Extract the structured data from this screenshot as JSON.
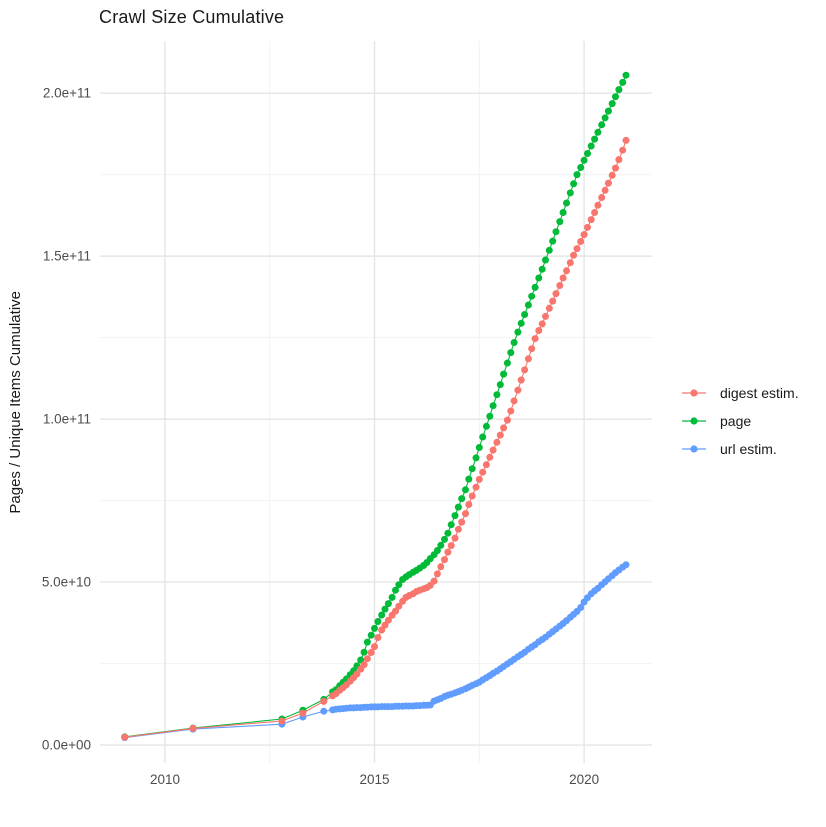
{
  "chart_data": {
    "type": "line",
    "title": "Crawl Size Cumulative",
    "ylabel": "Pages / Unique Items Cumulative",
    "xlabel": "",
    "value_unit": "1e9 (billions); y tick labels shown in scientific notation",
    "grid": "major and minor, light gray on white",
    "legend_position": "right",
    "x_domain": [
      2008.45,
      2021.62
    ],
    "y_domain": [
      -5.5,
      216
    ],
    "x_ticks": [
      {
        "value": 2010,
        "label": "2010"
      },
      {
        "value": 2015,
        "label": "2015"
      },
      {
        "value": 2020,
        "label": "2020"
      }
    ],
    "x_minor_gridlines": [
      2012.5,
      2017.5
    ],
    "y_ticks": [
      {
        "value": 0,
        "label": "0.0e+00"
      },
      {
        "value": 50,
        "label": "5.0e+10"
      },
      {
        "value": 100,
        "label": "1.0e+11"
      },
      {
        "value": 150,
        "label": "1.5e+11"
      },
      {
        "value": 200,
        "label": "2.0e+11"
      }
    ],
    "y_minor_gridlines": [
      25,
      75,
      125,
      175
    ],
    "axis_text_color": "#4d4d4d",
    "series": [
      {
        "name": "digest estim.",
        "color": "#F8766D",
        "points": [
          [
            2009.04,
            2.4
          ],
          [
            2010.67,
            5.1
          ],
          [
            2012.79,
            7.4
          ],
          [
            2013.29,
            9.8
          ],
          [
            2013.79,
            13.4
          ],
          [
            2014.0,
            15.1
          ],
          [
            2014.08,
            15.8
          ],
          [
            2014.17,
            16.8
          ],
          [
            2014.25,
            17.6
          ],
          [
            2014.33,
            18.5
          ],
          [
            2014.42,
            19.6
          ],
          [
            2014.5,
            20.7
          ],
          [
            2014.58,
            21.8
          ],
          [
            2014.67,
            23.3
          ],
          [
            2014.75,
            24.7
          ],
          [
            2014.83,
            26.5
          ],
          [
            2014.92,
            28.4
          ],
          [
            2015.0,
            30.2
          ],
          [
            2015.08,
            33.0
          ],
          [
            2015.17,
            35.3
          ],
          [
            2015.25,
            36.8
          ],
          [
            2015.33,
            38.3
          ],
          [
            2015.42,
            39.8
          ],
          [
            2015.5,
            41.1
          ],
          [
            2015.58,
            42.6
          ],
          [
            2015.67,
            44.1
          ],
          [
            2015.75,
            45.3
          ],
          [
            2015.83,
            45.9
          ],
          [
            2015.92,
            46.4
          ],
          [
            2016.0,
            47.1
          ],
          [
            2016.08,
            47.5
          ],
          [
            2016.17,
            47.9
          ],
          [
            2016.25,
            48.3
          ],
          [
            2016.33,
            49.0
          ],
          [
            2016.42,
            50.3
          ],
          [
            2016.5,
            52.5
          ],
          [
            2016.58,
            54.7
          ],
          [
            2016.67,
            56.9
          ],
          [
            2016.75,
            59.2
          ],
          [
            2016.83,
            61.2
          ],
          [
            2016.92,
            63.5
          ],
          [
            2017.0,
            66.2
          ],
          [
            2017.08,
            68.4
          ],
          [
            2017.17,
            71.0
          ],
          [
            2017.25,
            73.8
          ],
          [
            2017.33,
            76.4
          ],
          [
            2017.42,
            79.1
          ],
          [
            2017.5,
            81.5
          ],
          [
            2017.58,
            83.7
          ],
          [
            2017.67,
            86.0
          ],
          [
            2017.75,
            88.3
          ],
          [
            2017.83,
            90.5
          ],
          [
            2017.92,
            92.9
          ],
          [
            2018.0,
            95.1
          ],
          [
            2018.08,
            97.3
          ],
          [
            2018.17,
            99.7
          ],
          [
            2018.25,
            102.5
          ],
          [
            2018.33,
            105.6
          ],
          [
            2018.42,
            108.9
          ],
          [
            2018.5,
            112.0
          ],
          [
            2018.58,
            115.1
          ],
          [
            2018.67,
            118.5
          ],
          [
            2018.75,
            121.6
          ],
          [
            2018.83,
            124.7
          ],
          [
            2018.92,
            127.2
          ],
          [
            2019.0,
            129.2
          ],
          [
            2019.08,
            131.5
          ],
          [
            2019.17,
            134.0
          ],
          [
            2019.25,
            136.2
          ],
          [
            2019.33,
            138.5
          ],
          [
            2019.42,
            141.0
          ],
          [
            2019.5,
            143.3
          ],
          [
            2019.58,
            145.5
          ],
          [
            2019.67,
            148.0
          ],
          [
            2019.75,
            150.3
          ],
          [
            2019.83,
            152.3
          ],
          [
            2019.92,
            154.5
          ],
          [
            2020.0,
            156.6
          ],
          [
            2020.08,
            158.8
          ],
          [
            2020.17,
            161.2
          ],
          [
            2020.25,
            163.4
          ],
          [
            2020.33,
            165.6
          ],
          [
            2020.42,
            168.0
          ],
          [
            2020.5,
            170.2
          ],
          [
            2020.58,
            172.4
          ],
          [
            2020.67,
            174.8
          ],
          [
            2020.75,
            177.0
          ],
          [
            2020.83,
            179.6
          ],
          [
            2020.92,
            182.5
          ],
          [
            2021.0,
            185.5
          ]
        ]
      },
      {
        "name": "page",
        "color": "#00BA38",
        "points": [
          [
            2009.04,
            2.5
          ],
          [
            2010.67,
            5.2
          ],
          [
            2012.79,
            8.0
          ],
          [
            2013.29,
            10.7
          ],
          [
            2013.79,
            14.0
          ],
          [
            2014.0,
            16.3
          ],
          [
            2014.08,
            17.0
          ],
          [
            2014.17,
            18.2
          ],
          [
            2014.25,
            19.3
          ],
          [
            2014.33,
            20.3
          ],
          [
            2014.42,
            21.6
          ],
          [
            2014.5,
            22.8
          ],
          [
            2014.58,
            24.3
          ],
          [
            2014.67,
            26.1
          ],
          [
            2014.75,
            28.5
          ],
          [
            2014.83,
            31.6
          ],
          [
            2014.92,
            33.7
          ],
          [
            2015.0,
            35.8
          ],
          [
            2015.08,
            37.9
          ],
          [
            2015.17,
            39.9
          ],
          [
            2015.25,
            41.7
          ],
          [
            2015.33,
            43.4
          ],
          [
            2015.42,
            45.3
          ],
          [
            2015.5,
            47.5
          ],
          [
            2015.58,
            49.2
          ],
          [
            2015.67,
            50.8
          ],
          [
            2015.75,
            51.6
          ],
          [
            2015.83,
            52.3
          ],
          [
            2015.92,
            53.0
          ],
          [
            2016.0,
            53.6
          ],
          [
            2016.08,
            54.3
          ],
          [
            2016.17,
            55.1
          ],
          [
            2016.25,
            56.0
          ],
          [
            2016.33,
            57.2
          ],
          [
            2016.42,
            58.4
          ],
          [
            2016.5,
            59.7
          ],
          [
            2016.58,
            61.3
          ],
          [
            2016.67,
            63.1
          ],
          [
            2016.75,
            65.0
          ],
          [
            2016.83,
            67.6
          ],
          [
            2016.92,
            70.4
          ],
          [
            2017.0,
            73.0
          ],
          [
            2017.08,
            75.6
          ],
          [
            2017.17,
            78.3
          ],
          [
            2017.25,
            81.6
          ],
          [
            2017.33,
            84.8
          ],
          [
            2017.42,
            88.1
          ],
          [
            2017.5,
            91.3
          ],
          [
            2017.58,
            94.5
          ],
          [
            2017.67,
            97.8
          ],
          [
            2017.75,
            100.9
          ],
          [
            2017.83,
            104.1
          ],
          [
            2017.92,
            107.5
          ],
          [
            2018.0,
            110.6
          ],
          [
            2018.08,
            113.8
          ],
          [
            2018.17,
            117.2
          ],
          [
            2018.25,
            120.4
          ],
          [
            2018.33,
            123.5
          ],
          [
            2018.42,
            126.7
          ],
          [
            2018.5,
            129.4
          ],
          [
            2018.58,
            132.1
          ],
          [
            2018.67,
            135.0
          ],
          [
            2018.75,
            137.7
          ],
          [
            2018.83,
            140.4
          ],
          [
            2018.92,
            143.3
          ],
          [
            2019.0,
            146.0
          ],
          [
            2019.08,
            148.8
          ],
          [
            2019.17,
            151.8
          ],
          [
            2019.25,
            154.6
          ],
          [
            2019.33,
            157.5
          ],
          [
            2019.42,
            160.6
          ],
          [
            2019.5,
            163.4
          ],
          [
            2019.58,
            166.3
          ],
          [
            2019.67,
            169.4
          ],
          [
            2019.75,
            172.2
          ],
          [
            2019.83,
            175.0
          ],
          [
            2019.92,
            177.2
          ],
          [
            2020.0,
            179.4
          ],
          [
            2020.08,
            181.5
          ],
          [
            2020.17,
            183.8
          ],
          [
            2020.25,
            185.9
          ],
          [
            2020.33,
            188.0
          ],
          [
            2020.42,
            190.3
          ],
          [
            2020.5,
            192.4
          ],
          [
            2020.58,
            194.5
          ],
          [
            2020.67,
            196.8
          ],
          [
            2020.75,
            198.9
          ],
          [
            2020.83,
            201.1
          ],
          [
            2020.92,
            203.3
          ],
          [
            2021.0,
            205.5
          ]
        ]
      },
      {
        "name": "url estim.",
        "color": "#619CFF",
        "points": [
          [
            2009.04,
            2.3
          ],
          [
            2010.67,
            4.9
          ],
          [
            2012.79,
            6.4
          ],
          [
            2013.29,
            8.6
          ],
          [
            2013.79,
            10.4
          ],
          [
            2014.0,
            10.8
          ],
          [
            2014.08,
            11.0
          ],
          [
            2014.17,
            11.1
          ],
          [
            2014.25,
            11.2
          ],
          [
            2014.33,
            11.3
          ],
          [
            2014.42,
            11.4
          ],
          [
            2014.5,
            11.4
          ],
          [
            2014.58,
            11.5
          ],
          [
            2014.67,
            11.5
          ],
          [
            2014.75,
            11.6
          ],
          [
            2014.83,
            11.6
          ],
          [
            2014.92,
            11.7
          ],
          [
            2015.0,
            11.7
          ],
          [
            2015.08,
            11.7
          ],
          [
            2015.17,
            11.8
          ],
          [
            2015.25,
            11.8
          ],
          [
            2015.33,
            11.8
          ],
          [
            2015.42,
            11.8
          ],
          [
            2015.5,
            11.9
          ],
          [
            2015.58,
            11.9
          ],
          [
            2015.67,
            11.9
          ],
          [
            2015.75,
            12.0
          ],
          [
            2015.83,
            12.0
          ],
          [
            2015.92,
            12.0
          ],
          [
            2016.0,
            12.1
          ],
          [
            2016.08,
            12.1
          ],
          [
            2016.17,
            12.2
          ],
          [
            2016.25,
            12.2
          ],
          [
            2016.33,
            12.3
          ],
          [
            2016.42,
            13.5
          ],
          [
            2016.5,
            13.9
          ],
          [
            2016.58,
            14.3
          ],
          [
            2016.67,
            14.9
          ],
          [
            2016.75,
            15.3
          ],
          [
            2016.83,
            15.6
          ],
          [
            2016.92,
            16.0
          ],
          [
            2017.0,
            16.4
          ],
          [
            2017.08,
            16.8
          ],
          [
            2017.17,
            17.3
          ],
          [
            2017.25,
            17.8
          ],
          [
            2017.33,
            18.3
          ],
          [
            2017.42,
            18.8
          ],
          [
            2017.5,
            19.3
          ],
          [
            2017.58,
            20.0
          ],
          [
            2017.67,
            20.7
          ],
          [
            2017.75,
            21.3
          ],
          [
            2017.83,
            22.0
          ],
          [
            2017.92,
            22.7
          ],
          [
            2018.0,
            23.4
          ],
          [
            2018.08,
            24.1
          ],
          [
            2018.17,
            24.9
          ],
          [
            2018.25,
            25.6
          ],
          [
            2018.33,
            26.3
          ],
          [
            2018.42,
            27.1
          ],
          [
            2018.5,
            27.8
          ],
          [
            2018.58,
            28.5
          ],
          [
            2018.67,
            29.4
          ],
          [
            2018.75,
            30.1
          ],
          [
            2018.83,
            30.8
          ],
          [
            2018.92,
            31.7
          ],
          [
            2019.0,
            32.4
          ],
          [
            2019.08,
            33.1
          ],
          [
            2019.17,
            34.0
          ],
          [
            2019.25,
            34.8
          ],
          [
            2019.33,
            35.6
          ],
          [
            2019.42,
            36.5
          ],
          [
            2019.5,
            37.3
          ],
          [
            2019.58,
            38.2
          ],
          [
            2019.67,
            39.2
          ],
          [
            2019.75,
            40.1
          ],
          [
            2019.83,
            41.0
          ],
          [
            2019.92,
            42.2
          ],
          [
            2020.0,
            43.9
          ],
          [
            2020.08,
            45.2
          ],
          [
            2020.17,
            46.4
          ],
          [
            2020.25,
            47.3
          ],
          [
            2020.33,
            48.1
          ],
          [
            2020.42,
            49.2
          ],
          [
            2020.5,
            50.1
          ],
          [
            2020.58,
            51.0
          ],
          [
            2020.67,
            52.0
          ],
          [
            2020.75,
            52.9
          ],
          [
            2020.83,
            53.7
          ],
          [
            2020.92,
            54.6
          ],
          [
            2021.0,
            55.3
          ]
        ]
      }
    ]
  }
}
